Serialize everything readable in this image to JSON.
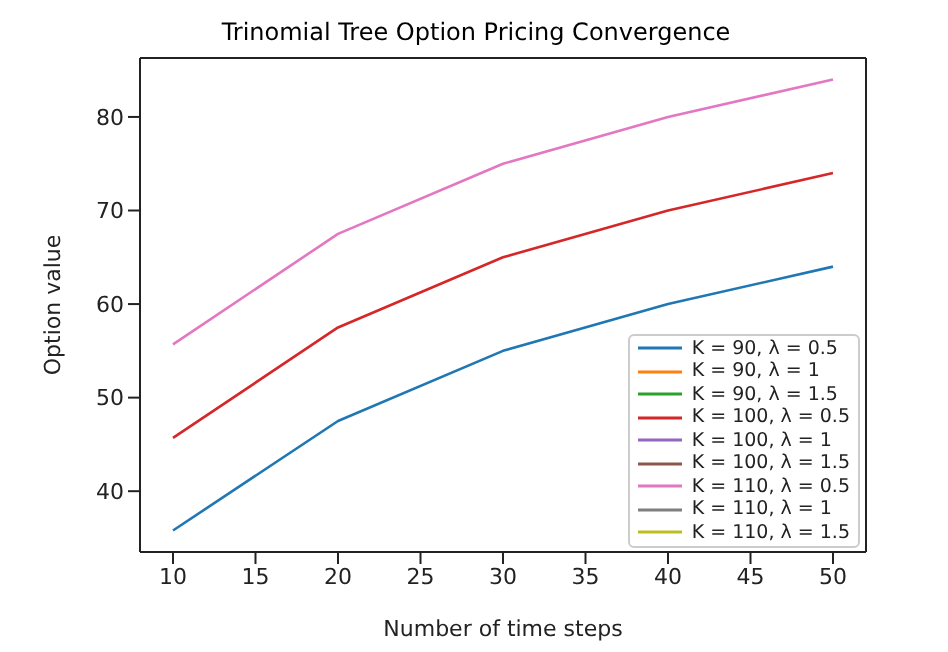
{
  "chart_data": {
    "type": "line",
    "title": "Trinomial Tree Option Pricing Convergence",
    "xlabel": "Number of time steps",
    "ylabel": "Option value",
    "x": [
      10,
      20,
      30,
      40,
      50
    ],
    "xlim": [
      8,
      52
    ],
    "xticks": [
      10,
      15,
      20,
      25,
      30,
      35,
      40,
      45,
      50
    ],
    "ylim": [
      33.5,
      86.3
    ],
    "yticks": [
      40,
      50,
      60,
      70,
      80
    ],
    "grid": false,
    "legend": "bottom right",
    "marker": "none",
    "line_style": "solid",
    "series": [
      {
        "name": "K = 90, λ = 0.5",
        "color": "#1f77b4",
        "values": [
          35.8,
          47.5,
          55,
          60,
          64
        ]
      },
      {
        "name": "K = 90, λ = 1",
        "color": "#ff7f0e",
        "values": [
          null,
          null,
          null,
          null,
          null
        ]
      },
      {
        "name": "K = 90, λ = 1.5",
        "color": "#2ca02c",
        "values": [
          null,
          null,
          null,
          null,
          null
        ]
      },
      {
        "name": "K = 100, λ = 0.5",
        "color": "#d62728",
        "values": [
          45.7,
          57.5,
          65,
          70,
          74
        ]
      },
      {
        "name": "K = 100, λ = 1",
        "color": "#9467bd",
        "values": [
          null,
          null,
          null,
          null,
          null
        ]
      },
      {
        "name": "K = 100, λ = 1.5",
        "color": "#8c564b",
        "values": [
          null,
          null,
          null,
          null,
          null
        ]
      },
      {
        "name": "K = 110, λ = 0.5",
        "color": "#e377c2",
        "values": [
          55.7,
          67.5,
          75,
          80,
          84
        ]
      },
      {
        "name": "K = 110, λ = 1",
        "color": "#7f7f7f",
        "values": [
          null,
          null,
          null,
          null,
          null
        ]
      },
      {
        "name": "K = 110, λ = 1.5",
        "color": "#bcbd22",
        "values": [
          null,
          null,
          null,
          null,
          null
        ]
      }
    ]
  }
}
